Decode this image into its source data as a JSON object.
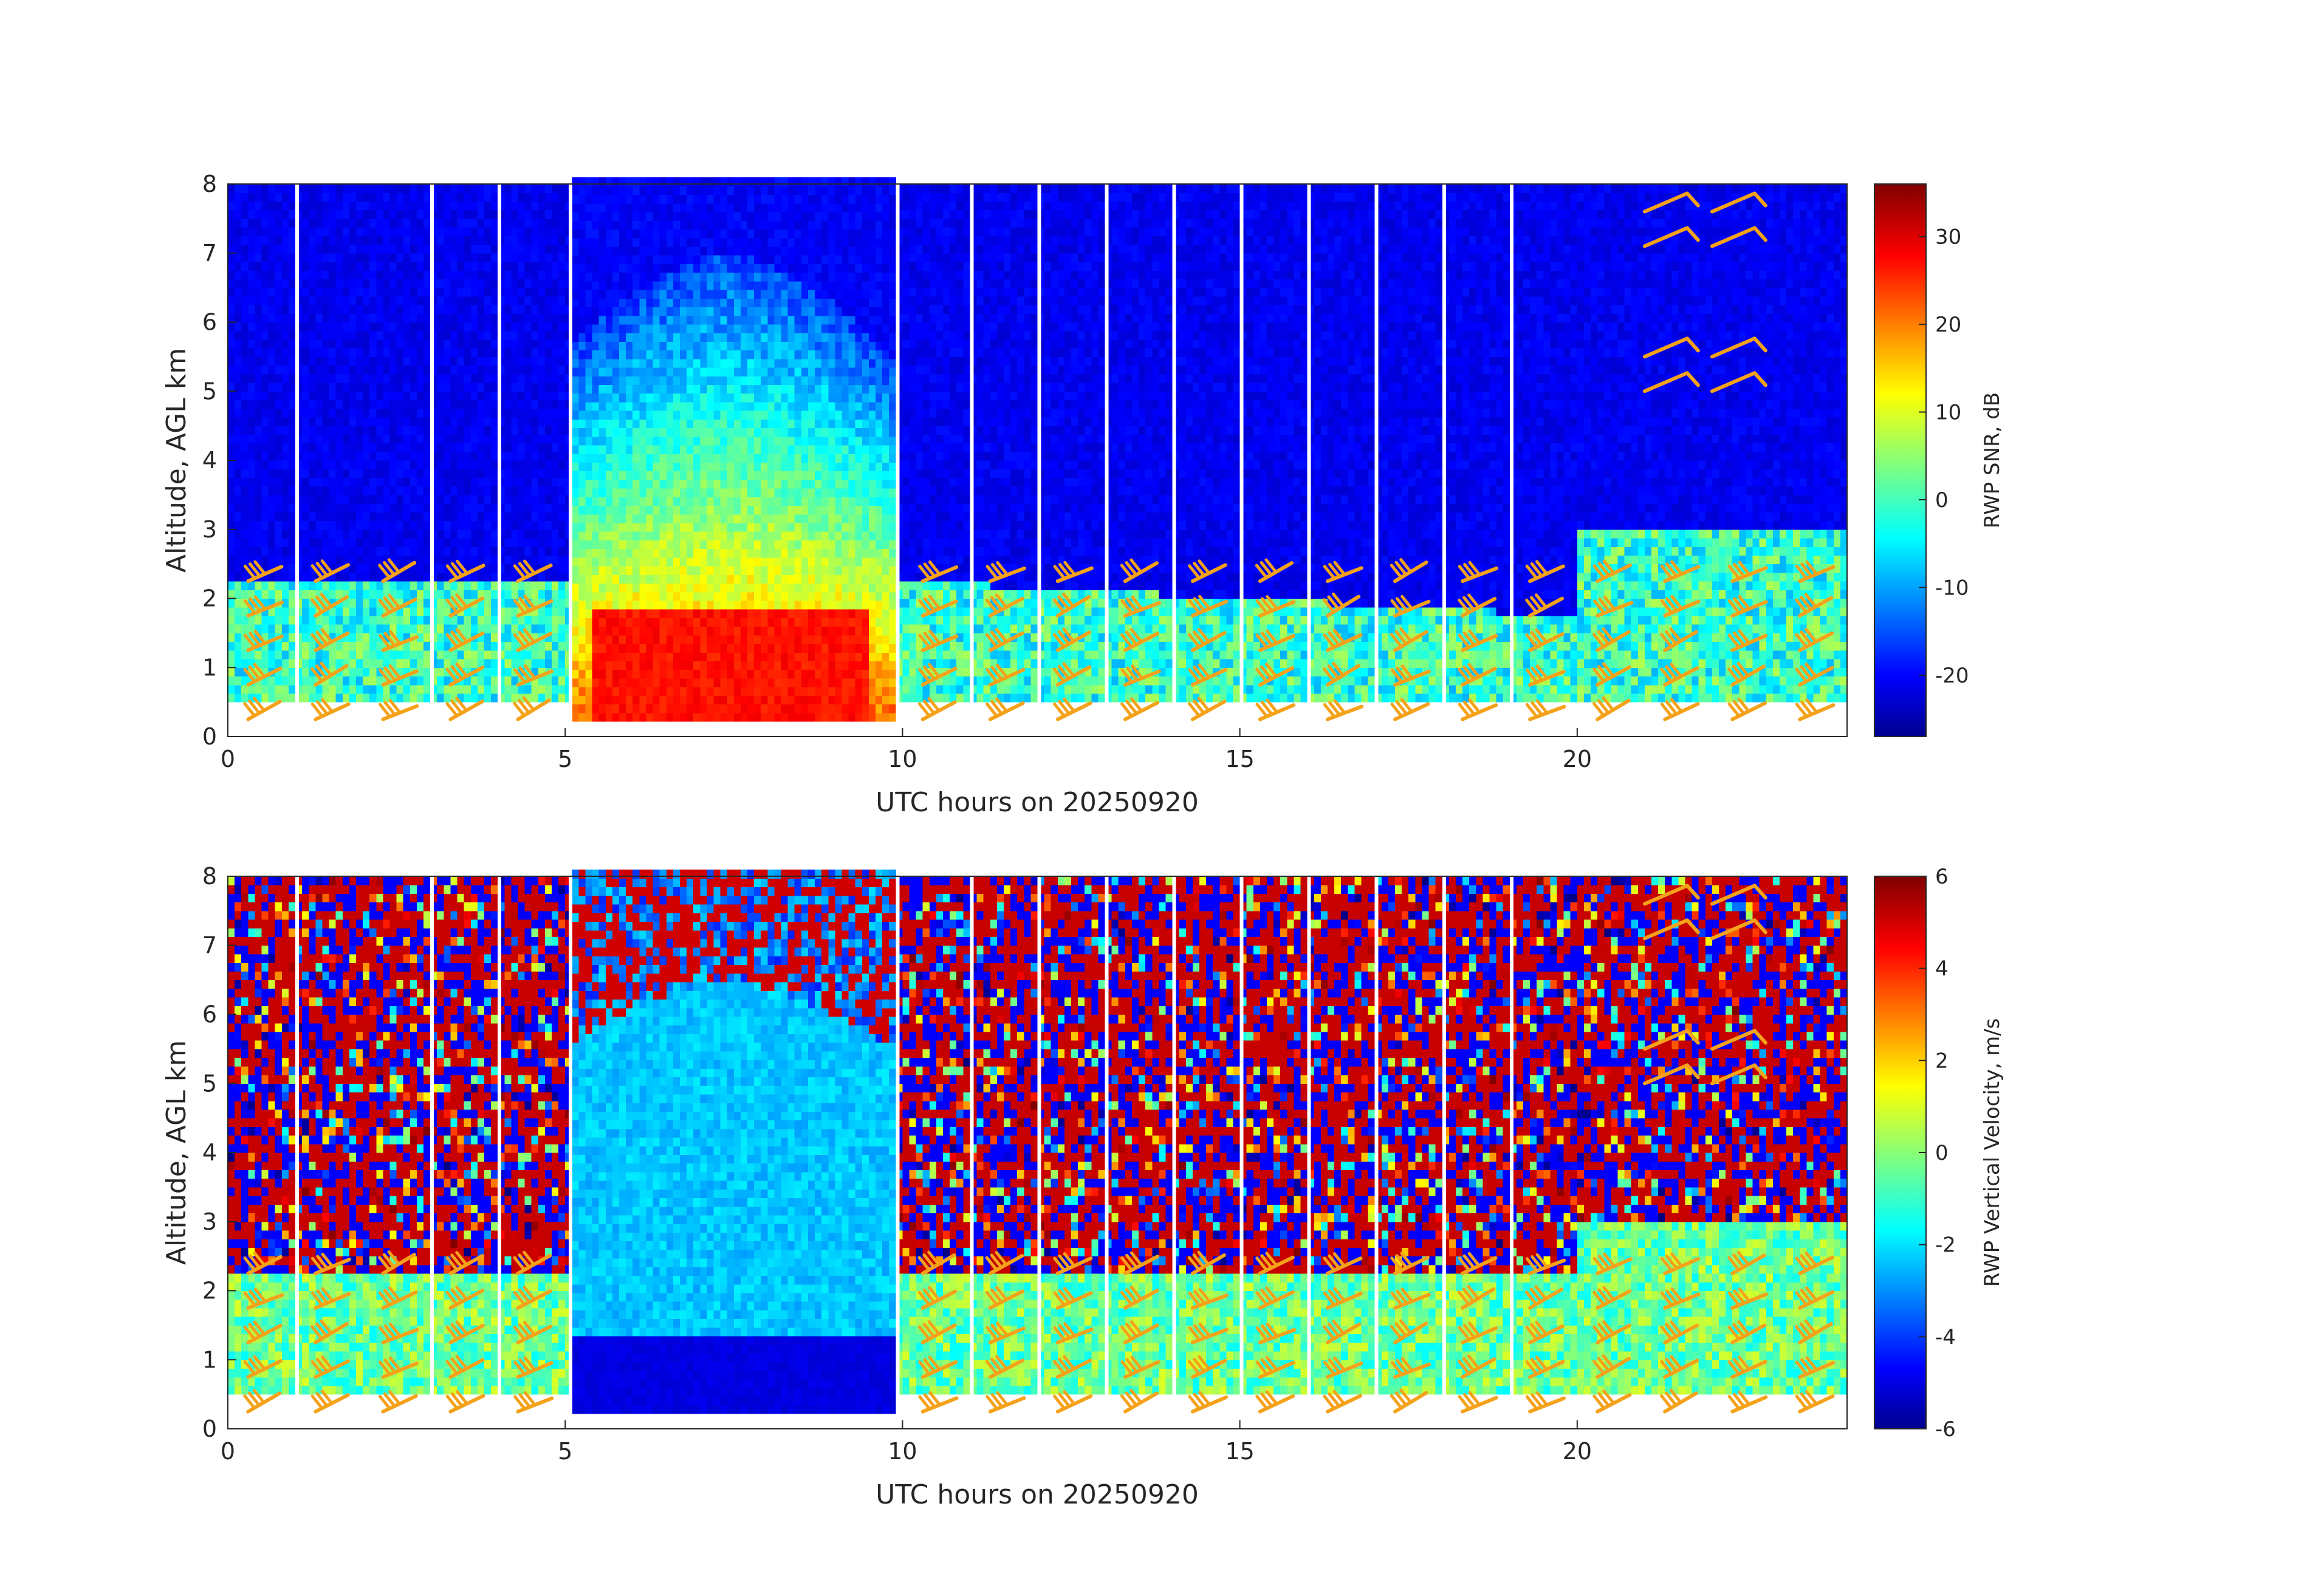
{
  "chart_data": [
    {
      "type": "heatmap",
      "title": "",
      "xlabel": "UTC hours on 20250920",
      "ylabel": "Altitude, AGL km",
      "xlim": [
        0,
        24
      ],
      "ylim": [
        0,
        8
      ],
      "x_ticks": [
        "0",
        "5",
        "10",
        "15",
        "20"
      ],
      "y_ticks": [
        "0",
        "1",
        "2",
        "3",
        "4",
        "5",
        "6",
        "7",
        "8"
      ],
      "colorbar": {
        "label": "RWP SNR, dB",
        "range": [
          -27,
          36
        ],
        "ticks": [
          "-20",
          "-10",
          "0",
          "10",
          "20",
          "30"
        ],
        "colormap": "jet"
      },
      "field": "snr",
      "overlay": "wind barbs (orange)"
    },
    {
      "type": "heatmap",
      "title": "",
      "xlabel": "UTC hours on 20250920",
      "ylabel": "Altitude, AGL km",
      "xlim": [
        0,
        24
      ],
      "ylim": [
        0,
        8
      ],
      "x_ticks": [
        "0",
        "5",
        "10",
        "15",
        "20"
      ],
      "y_ticks": [
        "0",
        "1",
        "2",
        "3",
        "4",
        "5",
        "6",
        "7",
        "8"
      ],
      "colorbar": {
        "label": "RWP Vertical Velocity, m/s",
        "range": [
          -6,
          6
        ],
        "ticks": [
          "-6",
          "-4",
          "-2",
          "0",
          "2",
          "4",
          "6"
        ],
        "colormap": "jet"
      },
      "field": "velocity",
      "overlay": "wind barbs (orange)"
    }
  ],
  "barb_color": "#f5a21b",
  "data_gaps_hours": [
    1.0,
    3.0,
    4.0,
    5.05,
    9.9,
    11.0,
    12.0,
    13.0,
    14.0,
    15.0,
    16.0,
    17.0,
    18.0,
    19.0
  ],
  "no_data_color": "#ffffff"
}
